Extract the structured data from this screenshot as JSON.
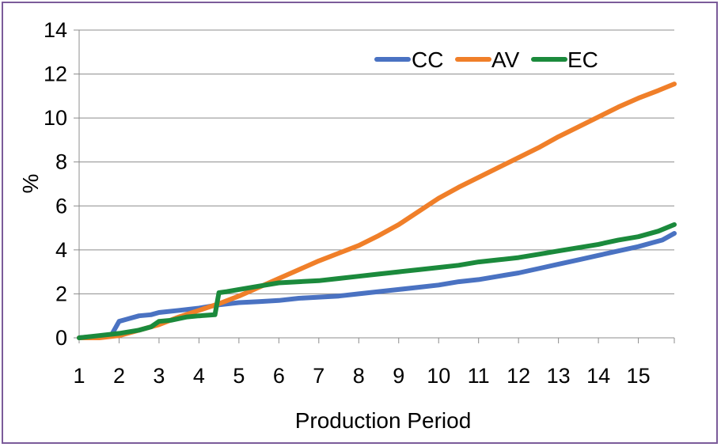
{
  "chart_data": {
    "type": "line",
    "xlabel": "Production Period",
    "ylabel": "%",
    "ylim": [
      0,
      14
    ],
    "xlim": [
      1,
      15.9
    ],
    "y_ticks": [
      "0",
      "2",
      "4",
      "6",
      "8",
      "10",
      "12",
      "14"
    ],
    "x_ticks": [
      "1",
      "2",
      "3",
      "4",
      "5",
      "6",
      "7",
      "8",
      "9",
      "10",
      "11",
      "12",
      "13",
      "14",
      "15"
    ],
    "grid": "horizontal",
    "legend_position": "top-right",
    "series": [
      {
        "name": "CC",
        "color": "#4a72c2",
        "x": [
          1,
          1.3,
          1.8,
          2.0,
          2.2,
          2.5,
          2.8,
          3.0,
          3.5,
          4.0,
          4.5,
          5.0,
          5.5,
          6.0,
          6.5,
          7.0,
          7.5,
          8.0,
          8.5,
          9.0,
          9.5,
          10.0,
          10.5,
          11.0,
          11.5,
          12.0,
          12.5,
          13.0,
          13.5,
          14.0,
          14.5,
          15.0,
          15.3,
          15.6,
          15.9
        ],
        "values": [
          0,
          0.05,
          0.1,
          0.75,
          0.85,
          1.0,
          1.05,
          1.15,
          1.25,
          1.35,
          1.5,
          1.6,
          1.65,
          1.7,
          1.8,
          1.85,
          1.9,
          2.0,
          2.1,
          2.2,
          2.3,
          2.4,
          2.55,
          2.65,
          2.8,
          2.95,
          3.15,
          3.35,
          3.55,
          3.75,
          3.95,
          4.15,
          4.3,
          4.45,
          4.75
        ]
      },
      {
        "name": "AV",
        "color": "#f07f29",
        "x": [
          1,
          1.5,
          2.0,
          2.5,
          3.0,
          3.5,
          4.0,
          4.5,
          5.0,
          5.5,
          6.0,
          6.5,
          7.0,
          7.5,
          8.0,
          8.5,
          9.0,
          9.5,
          10.0,
          10.5,
          11.0,
          11.5,
          12.0,
          12.5,
          13.0,
          13.5,
          14.0,
          14.5,
          15.0,
          15.5,
          15.9
        ],
        "values": [
          0,
          0,
          0.1,
          0.35,
          0.6,
          0.95,
          1.25,
          1.55,
          1.9,
          2.3,
          2.7,
          3.1,
          3.5,
          3.85,
          4.2,
          4.65,
          5.15,
          5.75,
          6.35,
          6.85,
          7.3,
          7.75,
          8.2,
          8.65,
          9.15,
          9.6,
          10.05,
          10.5,
          10.9,
          11.25,
          11.55
        ]
      },
      {
        "name": "EC",
        "color": "#1b8a3c",
        "x": [
          1,
          1.5,
          2.0,
          2.5,
          2.8,
          3.0,
          3.3,
          3.7,
          4.0,
          4.4,
          4.5,
          4.7,
          5.0,
          5.5,
          6.0,
          6.5,
          7.0,
          7.5,
          8.0,
          8.5,
          9.0,
          9.5,
          10.0,
          10.5,
          11.0,
          11.5,
          12.0,
          12.5,
          13.0,
          13.5,
          14.0,
          14.5,
          15.0,
          15.5,
          15.9
        ],
        "values": [
          0,
          0.1,
          0.2,
          0.35,
          0.5,
          0.75,
          0.8,
          0.95,
          1.0,
          1.05,
          2.05,
          2.1,
          2.2,
          2.35,
          2.5,
          2.55,
          2.6,
          2.7,
          2.8,
          2.9,
          3.0,
          3.1,
          3.2,
          3.3,
          3.45,
          3.55,
          3.65,
          3.8,
          3.95,
          4.1,
          4.25,
          4.45,
          4.6,
          4.85,
          5.15
        ]
      }
    ]
  }
}
